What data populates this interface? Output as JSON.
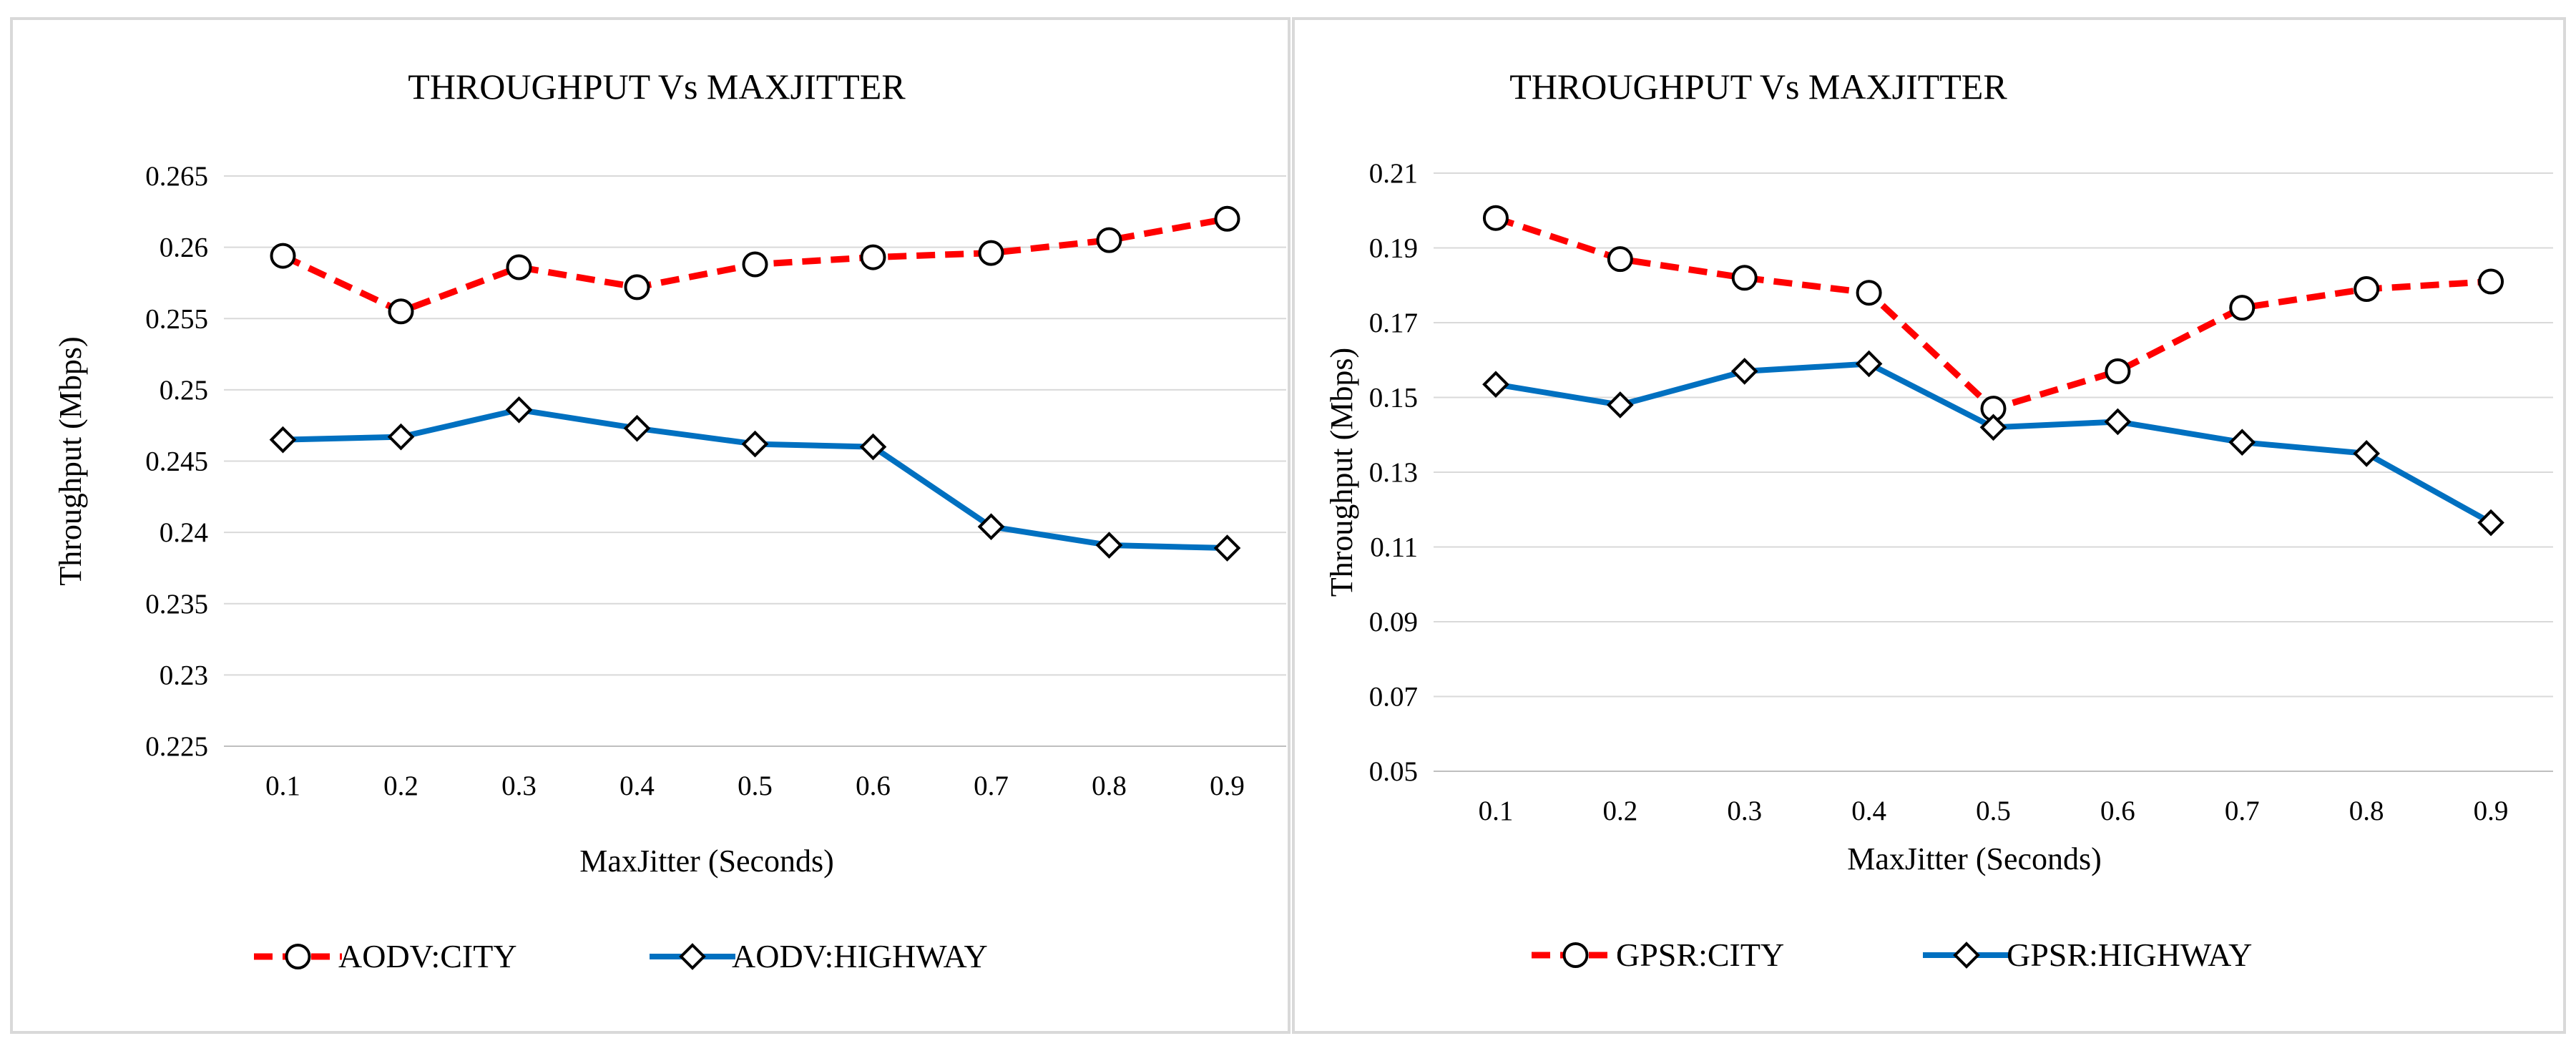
{
  "chart_data": [
    {
      "type": "line",
      "title": "THROUGHPUT  Vs MAXJITTER",
      "xlabel": "MaxJitter (Seconds)",
      "ylabel": "Throughput (Mbps)",
      "categories": [
        "0.1",
        "0.2",
        "0.3",
        "0.4",
        "0.5",
        "0.6",
        "0.7",
        "0.8",
        "0.9"
      ],
      "ylim": [
        0.225,
        0.265
      ],
      "yticks": [
        "0.225",
        "0.23",
        "0.235",
        "0.24",
        "0.245",
        "0.25",
        "0.255",
        "0.26",
        "0.265"
      ],
      "grid": true,
      "legend_position": "bottom",
      "series": [
        {
          "name": "AODV:CITY",
          "color": "#ff0000",
          "style": "dashed",
          "marker": "circle",
          "values": [
            0.2594,
            0.2555,
            0.2586,
            0.2572,
            0.2588,
            0.2593,
            0.2596,
            0.2605,
            0.262
          ]
        },
        {
          "name": "AODV:HIGHWAY",
          "color": "#0070c0",
          "style": "solid",
          "marker": "diamond",
          "values": [
            0.2465,
            0.2467,
            0.2486,
            0.2473,
            0.2462,
            0.246,
            0.2404,
            0.2391,
            0.2389
          ]
        }
      ]
    },
    {
      "type": "line",
      "title": "THROUGHPUT  Vs MAXJITTER",
      "xlabel": "MaxJitter (Seconds)",
      "ylabel": "Throughput (Mbps)",
      "categories": [
        "0.1",
        "0.2",
        "0.3",
        "0.4",
        "0.5",
        "0.6",
        "0.7",
        "0.8",
        "0.9"
      ],
      "ylim": [
        0.05,
        0.21
      ],
      "yticks": [
        "0.05",
        "0.07",
        "0.09",
        "0.11",
        "0.13",
        "0.15",
        "0.17",
        "0.19",
        "0.21"
      ],
      "grid": true,
      "legend_position": "bottom",
      "series": [
        {
          "name": "GPSR:CITY",
          "color": "#ff0000",
          "style": "dashed",
          "marker": "circle",
          "values": [
            0.198,
            0.187,
            0.182,
            0.178,
            0.147,
            0.157,
            0.174,
            0.179,
            0.181
          ]
        },
        {
          "name": "GPSR:HIGHWAY",
          "color": "#0070c0",
          "style": "solid",
          "marker": "diamond",
          "values": [
            0.1535,
            0.148,
            0.157,
            0.159,
            0.142,
            0.1435,
            0.138,
            0.135,
            0.1165
          ]
        }
      ]
    }
  ]
}
